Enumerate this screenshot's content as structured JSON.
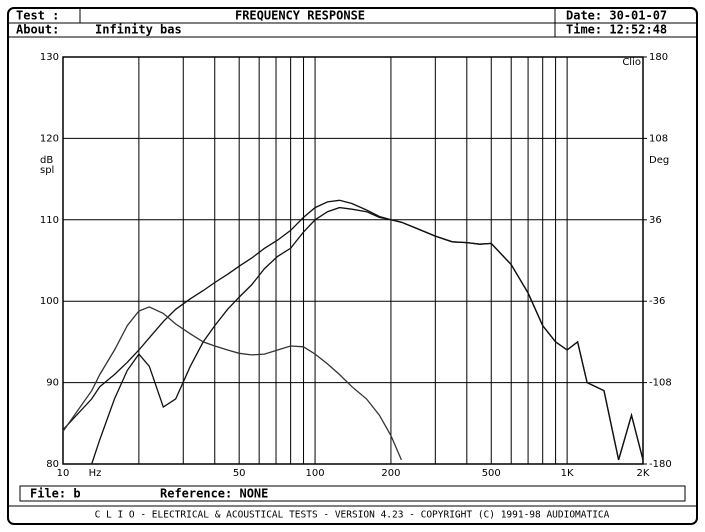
{
  "header": {
    "test_label": "Test :",
    "title": "FREQUENCY RESPONSE",
    "about_label": "About:",
    "about": "Infinity bas",
    "date": "Date: 30-01-07",
    "time": "Time: 12:52:48"
  },
  "chart_data": {
    "type": "line",
    "xscale": "log",
    "grid": true,
    "xlabel": "Hz",
    "ylabel": [
      "dB",
      "spl"
    ],
    "y2label": "Deg",
    "watermark": "Clio",
    "x": [
      10,
      13,
      14,
      16,
      18,
      20,
      22,
      25,
      28,
      32,
      36,
      40,
      45,
      50,
      56,
      63,
      71,
      80,
      90,
      100,
      112,
      125,
      140,
      160,
      180,
      200,
      220,
      250,
      300,
      350,
      400,
      450,
      500,
      600,
      700,
      800,
      900,
      1000,
      1100,
      1200,
      1400,
      1600,
      1800,
      2000
    ],
    "xlim": [
      10,
      2000
    ],
    "xticks": [
      10,
      50,
      100,
      200,
      500,
      {
        "value": 1000,
        "label": "1K"
      },
      {
        "value": 2000,
        "label": "2K"
      }
    ],
    "xminor_ticks": [
      20,
      30,
      40,
      60,
      70,
      80,
      90,
      300,
      400,
      600,
      700,
      800,
      900
    ],
    "ylim": [
      80,
      130
    ],
    "yticks": [
      80,
      90,
      100,
      110,
      120,
      130
    ],
    "y2lim": [
      -180,
      180
    ],
    "y2ticks": [
      -180,
      -108,
      -36,
      36,
      108,
      180
    ],
    "series": [
      {
        "color": "#111111",
        "values": [
          84.2,
          88,
          89.5,
          91,
          92.5,
          94,
          95.5,
          97.5,
          99,
          100.3,
          101.3,
          102.3,
          103.3,
          104.3,
          105.3,
          106.5,
          107.5,
          108.7,
          110.3,
          111.5,
          112.2,
          112.4,
          112,
          111.2,
          110.4,
          110,
          109.7,
          109,
          108,
          107.3,
          107.2,
          107,
          107.1,
          104.5,
          101,
          97,
          95,
          94,
          95,
          90,
          89,
          80.5,
          86,
          80.5
        ]
      },
      {
        "color": "#111111",
        "values": [
          null,
          80,
          83,
          88,
          91.5,
          93.5,
          92,
          87,
          88,
          92,
          95,
          97,
          99,
          100.5,
          102,
          104,
          105.5,
          106.5,
          108.5,
          110,
          111,
          111.5,
          111.3,
          111,
          110.3,
          110,
          109.7,
          109,
          108,
          107.3,
          107.2,
          107,
          107.1,
          104.5,
          101,
          97,
          95,
          94,
          95,
          90,
          89,
          80.5,
          86,
          80.5
        ]
      },
      {
        "color": "#333333",
        "values": [
          84,
          89,
          91,
          94,
          97,
          98.8,
          99.3,
          98.5,
          97.2,
          96,
          95,
          94.5,
          94,
          93.6,
          93.4,
          93.5,
          94,
          94.5,
          94.4,
          93.5,
          92.3,
          91,
          89.5,
          88,
          86,
          83.5,
          80.5,
          null,
          null,
          null,
          null,
          null,
          null,
          null,
          null,
          null,
          null,
          null,
          null,
          null,
          null,
          null,
          null,
          null
        ]
      }
    ]
  },
  "footer": {
    "file": "File: b",
    "reference": "Reference: NONE",
    "banner": "C L I O - ELECTRICAL & ACOUSTICAL TESTS - VERSION 4.23 - COPYRIGHT (C) 1991-98 AUDIOMATICA"
  }
}
